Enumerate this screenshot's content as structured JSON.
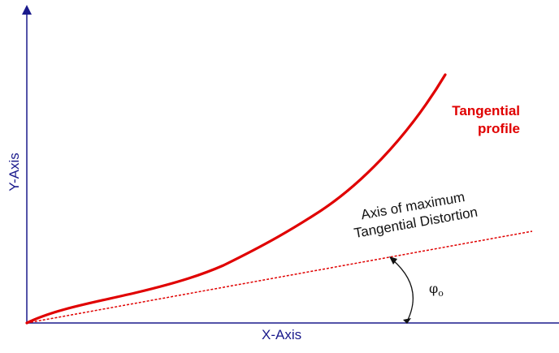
{
  "axes": {
    "x_label": "X-Axis",
    "y_label": "Y-Axis",
    "axis_color": "#1a1a8c"
  },
  "profile": {
    "label_line1": "Tangential",
    "label_line2": "profile",
    "color": "#e00000"
  },
  "distortion_axis": {
    "label_line1": "Axis of maximum",
    "label_line2": "Tangential Distortion",
    "color": "#e00000"
  },
  "angle": {
    "symbol": "φ",
    "subscript": "o"
  }
}
